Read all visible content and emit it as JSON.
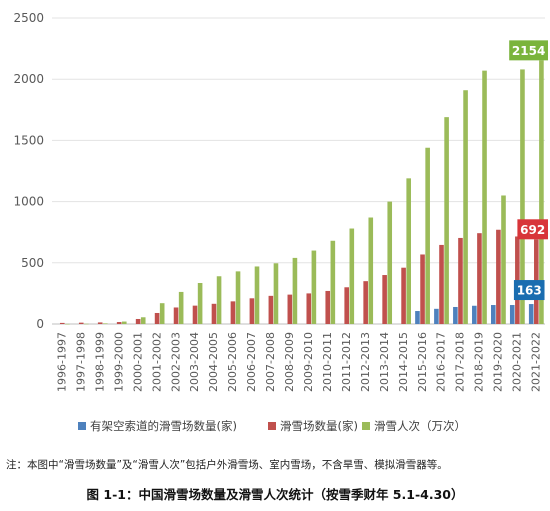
{
  "chart_data": {
    "type": "bar",
    "categories": [
      "1996-1997",
      "1997-1998",
      "1998-1999",
      "1999-2000",
      "2000-2001",
      "2001-2002",
      "2002-2003",
      "2003-2004",
      "2004-2005",
      "2005-2006",
      "2006-2007",
      "2007-2008",
      "2008-2009",
      "2009-2010",
      "2010-2011",
      "2011-2012",
      "2012-2013",
      "2013-2014",
      "2014-2015",
      "2015-2016",
      "2016-2017",
      "2017-2018",
      "2018-2019",
      "2019-2020",
      "2020-2021",
      "2021-2022"
    ],
    "series": [
      {
        "name": "有架空索道的滑雪场数量(家)",
        "color": "#4e81bd",
        "values": [
          null,
          null,
          null,
          null,
          null,
          null,
          null,
          null,
          null,
          null,
          null,
          null,
          null,
          null,
          null,
          null,
          null,
          null,
          null,
          106,
          124,
          139,
          149,
          155,
          155,
          163
        ]
      },
      {
        "name": "滑雪场数量(家)",
        "color": "#c0504d",
        "values": [
          9,
          11,
          13,
          16,
          41,
          90,
          135,
          150,
          165,
          185,
          210,
          230,
          240,
          250,
          270,
          300,
          350,
          400,
          460,
          568,
          646,
          703,
          742,
          770,
          715,
          692
        ]
      },
      {
        "name": "滑雪人次（万次）",
        "color": "#9bbb59",
        "values": [
          1,
          2,
          5,
          20,
          55,
          170,
          262,
          335,
          390,
          430,
          470,
          496,
          540,
          600,
          680,
          780,
          870,
          1000,
          1190,
          1440,
          1690,
          1910,
          2070,
          1050,
          2080,
          2154
        ]
      }
    ],
    "ylim": [
      0,
      2500
    ],
    "yticks": [
      0,
      500,
      1000,
      1500,
      2000,
      2500
    ],
    "grid": true,
    "legend_position": "bottom",
    "data_labels": [
      {
        "series": 2,
        "index": 25,
        "text": "2154",
        "color": "#7ab43c"
      },
      {
        "series": 1,
        "index": 25,
        "text": "692",
        "color": "#d8353a"
      },
      {
        "series": 0,
        "index": 25,
        "text": "163",
        "color": "#1a6db0"
      }
    ]
  },
  "note": "注：本图中“滑雪场数量”及“滑雪人次”包括户外滑雪场、室内雪场，不含旱雪、模拟滑雪器等。",
  "caption": "图 1-1：中国滑雪场数量及滑雪人次统计（按雪季财年 5.1-4.30）"
}
